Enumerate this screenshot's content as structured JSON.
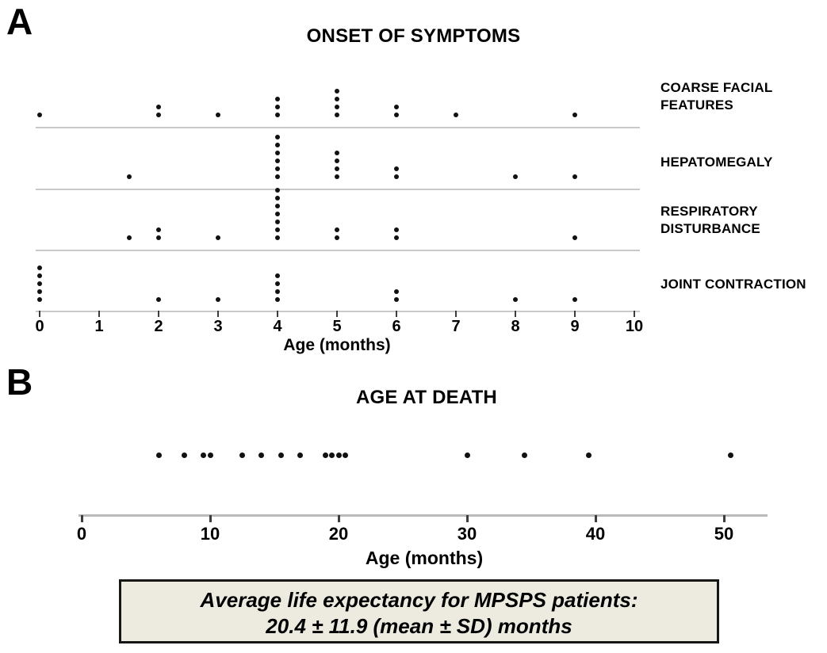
{
  "colors": {
    "background": "#ffffff",
    "dot": "#111111",
    "separator": "#c9c9c9",
    "axis_line": "#b9b9b9",
    "tick": "#3d3d3d",
    "text": "#000000",
    "box_background": "#edebe0",
    "box_border": "#161616"
  },
  "panel_a": {
    "label": "A",
    "title": "ONSET OF SYMPTOMS",
    "xlabel": "Age (months)"
  },
  "panel_b": {
    "label": "B",
    "title": "AGE AT DEATH",
    "xlabel": "Age (months)",
    "box": {
      "line1": "Average life expectancy for MPSPS patients:",
      "line2": "20.4 ± 11.9 (mean ± SD) months"
    }
  },
  "chart_data": [
    {
      "type": "scatter",
      "subtype": "stacked-dot-strip-plot",
      "title": "ONSET OF SYMPTOMS",
      "xlabel": "Age (months)",
      "xlim": [
        0,
        10
      ],
      "xticks": [
        0,
        1,
        2,
        3,
        4,
        5,
        6,
        7,
        8,
        9,
        10
      ],
      "grid": false,
      "legend": "row labels at right",
      "series": [
        {
          "name": "COARSE FACIAL FEATURES",
          "name_lines": [
            "COARSE FACIAL",
            "FEATURES"
          ],
          "x_values": [
            0,
            2,
            2,
            3,
            4,
            4,
            4,
            5,
            5,
            5,
            5,
            6,
            6,
            7,
            9
          ]
        },
        {
          "name": "HEPATOMEGALY",
          "name_lines": [
            "HEPATOMEGALY"
          ],
          "x_values": [
            1.5,
            4,
            4,
            4,
            4,
            4,
            4,
            5,
            5,
            5,
            5,
            6,
            6,
            8,
            9
          ]
        },
        {
          "name": "RESPIRATORY DISTURBANCE",
          "name_lines": [
            "RESPIRATORY",
            "DISTURBANCE"
          ],
          "x_values": [
            1.5,
            2,
            2,
            3,
            4,
            4,
            4,
            4,
            4,
            4,
            4,
            5,
            5,
            6,
            6,
            9
          ]
        },
        {
          "name": "JOINT CONTRACTION",
          "name_lines": [
            "JOINT CONTRACTION"
          ],
          "x_values": [
            0,
            0,
            0,
            0,
            0,
            2,
            3,
            4,
            4,
            4,
            4,
            6,
            6,
            8,
            9
          ]
        }
      ]
    },
    {
      "type": "scatter",
      "subtype": "dot-strip-plot",
      "title": "AGE AT DEATH",
      "xlabel": "Age (months)",
      "xlim": [
        0,
        53
      ],
      "xticks": [
        0,
        10,
        20,
        30,
        40,
        50
      ],
      "grid": false,
      "x_values": [
        6,
        8,
        9.5,
        10,
        12.5,
        14,
        15.5,
        17,
        19,
        19.5,
        20,
        20.5,
        30,
        34.5,
        39.5,
        50.5
      ],
      "mean": 20.4,
      "sd": 11.9
    }
  ]
}
